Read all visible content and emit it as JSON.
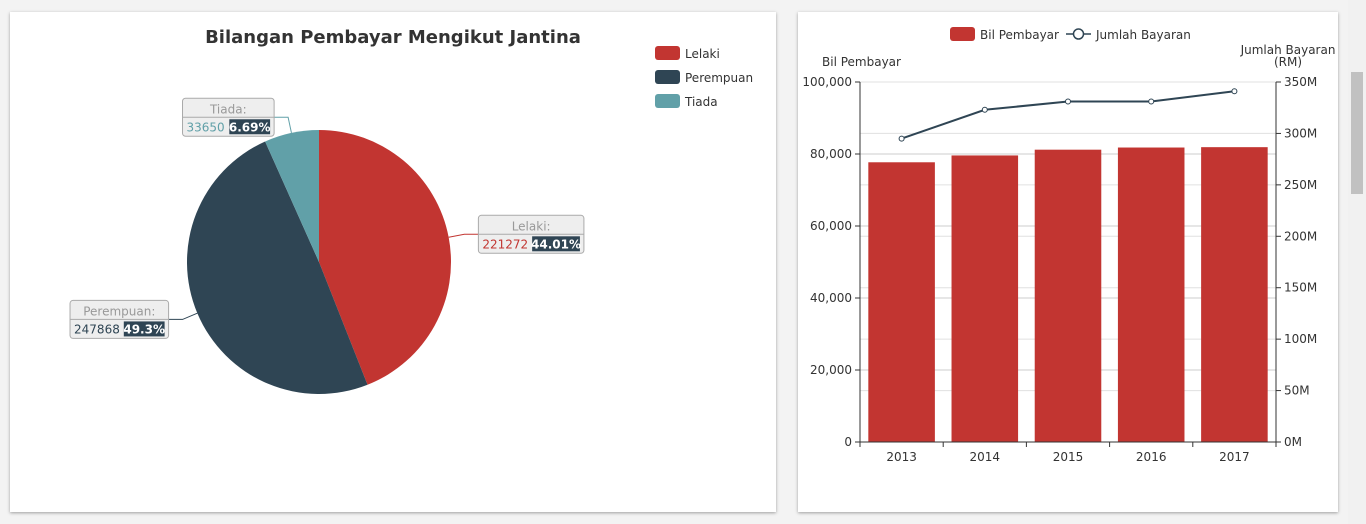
{
  "colors": {
    "lelaki": "#c23531",
    "perempuan": "#2f4554",
    "tiada": "#61a0a8",
    "bar": "#c23531",
    "line": "#2f4554",
    "label_badge": "#2f4554",
    "label_box": "#eeeeee"
  },
  "chart_data": [
    {
      "type": "pie",
      "title": "Bilangan Pembayar Mengikut Jantina",
      "legend": {
        "position": "top-right",
        "items": [
          "Lelaki",
          "Perempuan",
          "Tiada"
        ]
      },
      "slices": [
        {
          "name": "Lelaki",
          "value": 221272,
          "percent": "44.01%",
          "label_name": "Lelaki:"
        },
        {
          "name": "Perempuan",
          "value": 247868,
          "percent": "49.3%",
          "label_name": "Perempuan:"
        },
        {
          "name": "Tiada",
          "value": 33650,
          "percent": "6.69%",
          "label_name": "Tiada:"
        }
      ]
    },
    {
      "type": "bar",
      "categories": [
        "2013",
        "2014",
        "2015",
        "2016",
        "2017"
      ],
      "legend": {
        "position": "top-center",
        "items": [
          "Bil Pembayar",
          "Jumlah Bayaran"
        ]
      },
      "series": [
        {
          "name": "Bil Pembayar",
          "type": "bar",
          "axis": "left",
          "values": [
            77700,
            79600,
            81200,
            81800,
            81900
          ]
        },
        {
          "name": "Jumlah Bayaran",
          "type": "line",
          "axis": "right",
          "values": [
            295000000,
            323000000,
            331000000,
            331000000,
            341000000
          ]
        }
      ],
      "ylabel_left": "Bil Pembayar",
      "ylabel_right": "Jumlah Bayaran\n(RM)",
      "ylim_left": [
        0,
        100000
      ],
      "ylim_right": [
        0,
        350000000
      ],
      "yticks_left": [
        "0",
        "20,000",
        "40,000",
        "60,000",
        "80,000",
        "100,000"
      ],
      "yticks_right": [
        "0M",
        "50M",
        "100M",
        "150M",
        "200M",
        "250M",
        "300M",
        "350M"
      ],
      "grid": true
    }
  ]
}
